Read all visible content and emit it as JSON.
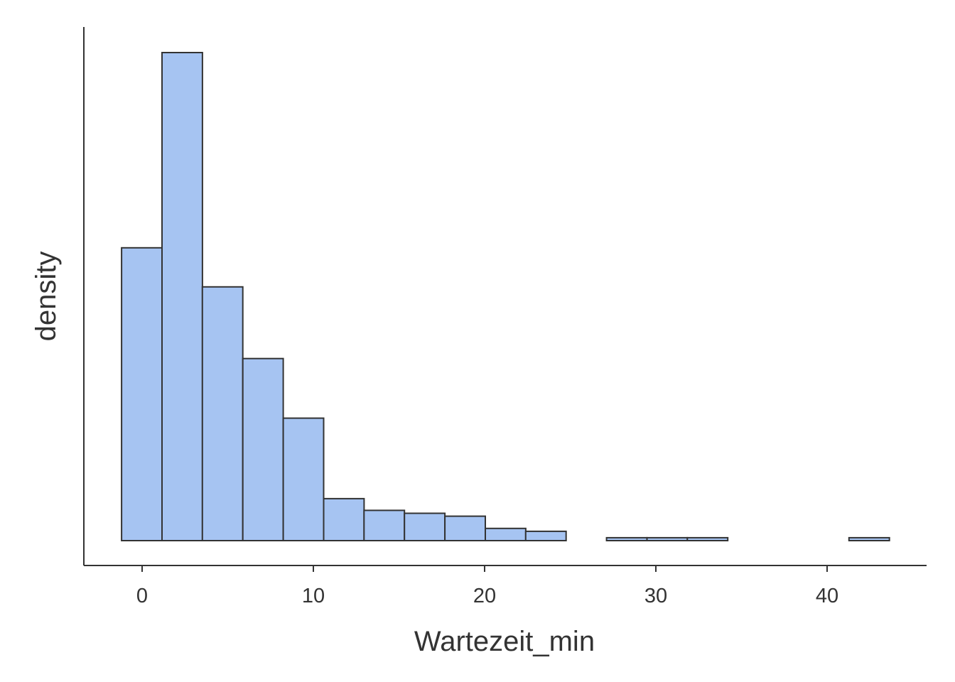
{
  "chart_data": {
    "type": "bar",
    "subtype": "histogram",
    "xlabel": "Wartezeit_min",
    "ylabel": "density",
    "xlim": [
      -3.5,
      45.5
    ],
    "x_ticks": [
      0,
      10,
      20,
      30,
      40
    ],
    "y_ticks_shown": false,
    "bin_width": 2.36,
    "bins": [
      {
        "x0": -1.2,
        "x1": 1.16,
        "value": 0.6
      },
      {
        "x0": 1.16,
        "x1": 3.52,
        "value": 1.0
      },
      {
        "x0": 3.52,
        "x1": 5.88,
        "value": 0.52
      },
      {
        "x0": 5.88,
        "x1": 8.24,
        "value": 0.373
      },
      {
        "x0": 8.24,
        "x1": 10.6,
        "value": 0.251
      },
      {
        "x0": 10.6,
        "x1": 12.96,
        "value": 0.086
      },
      {
        "x0": 12.96,
        "x1": 15.32,
        "value": 0.062
      },
      {
        "x0": 15.32,
        "x1": 17.68,
        "value": 0.056
      },
      {
        "x0": 17.68,
        "x1": 20.04,
        "value": 0.05
      },
      {
        "x0": 20.04,
        "x1": 22.4,
        "value": 0.025
      },
      {
        "x0": 22.4,
        "x1": 24.76,
        "value": 0.019
      },
      {
        "x0": 24.76,
        "x1": 27.12,
        "value": 0.0
      },
      {
        "x0": 27.12,
        "x1": 29.48,
        "value": 0.006
      },
      {
        "x0": 29.48,
        "x1": 31.84,
        "value": 0.006
      },
      {
        "x0": 31.84,
        "x1": 34.2,
        "value": 0.006
      },
      {
        "x0": 34.2,
        "x1": 36.56,
        "value": 0.0
      },
      {
        "x0": 36.56,
        "x1": 38.92,
        "value": 0.0
      },
      {
        "x0": 38.92,
        "x1": 41.28,
        "value": 0.0
      },
      {
        "x0": 41.28,
        "x1": 43.64,
        "value": 0.006
      }
    ],
    "colors": {
      "fill": "#a6c4f2",
      "outline": "#333333"
    },
    "grid": false,
    "legend": "none"
  }
}
